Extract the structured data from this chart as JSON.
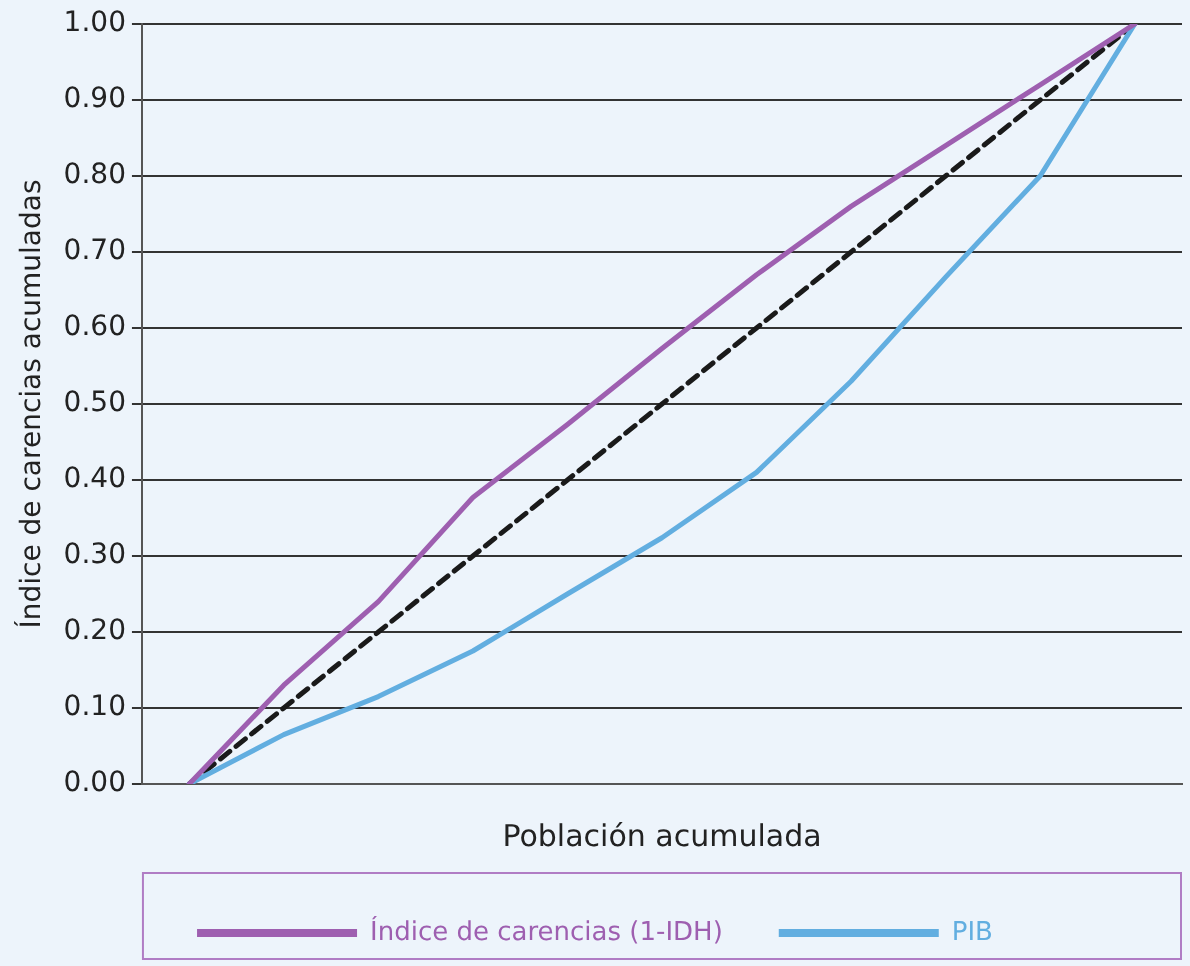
{
  "chart_data": {
    "type": "line",
    "xlabel": "Población acumulada",
    "ylabel": "Índice de carencias acumuladas",
    "categories": [
      null,
      null,
      null,
      null,
      null,
      null,
      null,
      null,
      null,
      null,
      null
    ],
    "series": [
      {
        "name": "Índice de carencias (1-IDH)",
        "color": "#9e5fb0",
        "values": [
          0,
          0.13,
          0.24,
          0.377,
          0.473,
          0.573,
          0.67,
          0.76,
          0.84,
          0.92,
          1.0
        ]
      },
      {
        "name": "PIB",
        "color": "#62aee0",
        "values": [
          0,
          0.065,
          0.115,
          0.175,
          0.25,
          0.324,
          0.41,
          0.53,
          0.667,
          0.8,
          1.0
        ]
      },
      {
        "color": "#1a1a1a",
        "line_style": "dashed",
        "values": [
          0,
          0.1,
          0.2,
          0.3,
          0.4,
          0.5,
          0.6,
          0.7,
          0.8,
          0.9,
          1.0
        ]
      }
    ],
    "ylim": [
      0,
      1
    ],
    "yticks": [
      {
        "value": 0,
        "label": "0.00"
      },
      {
        "value": 0.1,
        "label": "0.10"
      },
      {
        "value": 0.2,
        "label": "0.20"
      },
      {
        "value": 0.3,
        "label": "0.30"
      },
      {
        "value": 0.4,
        "label": "0.40"
      },
      {
        "value": 0.5,
        "label": "0.50"
      },
      {
        "value": 0.6,
        "label": "0.60"
      },
      {
        "value": 0.7,
        "label": "0.70"
      },
      {
        "value": 0.8,
        "label": "0.80"
      },
      {
        "value": 0.9,
        "label": "0.90"
      },
      {
        "value": 1,
        "label": "1.00"
      }
    ],
    "grid": "y",
    "legend": "bottom",
    "tick_labels": "y",
    "marker": "none",
    "line_style": "solid"
  }
}
